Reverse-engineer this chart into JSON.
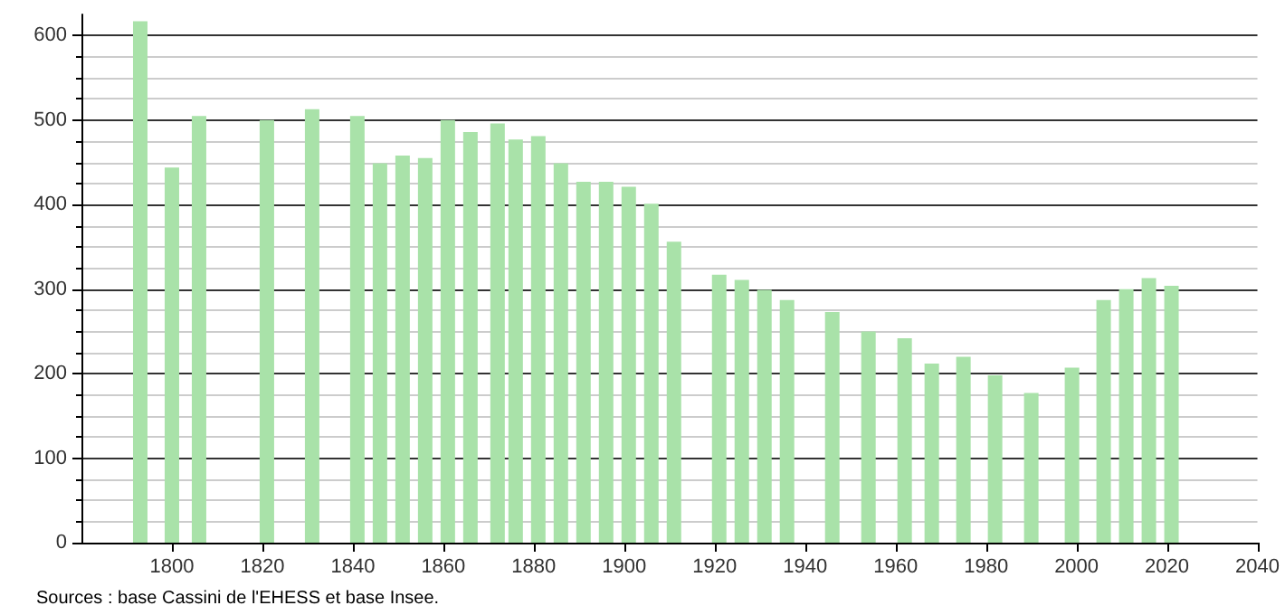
{
  "chart_data": {
    "type": "bar",
    "x": [
      1793,
      1800,
      1806,
      1821,
      1831,
      1841,
      1846,
      1851,
      1856,
      1861,
      1866,
      1872,
      1876,
      1881,
      1886,
      1891,
      1896,
      1901,
      1906,
      1911,
      1921,
      1926,
      1931,
      1936,
      1946,
      1954,
      1962,
      1968,
      1975,
      1982,
      1990,
      1999,
      2006,
      2011,
      2016,
      2021
    ],
    "values": [
      617,
      444,
      505,
      500,
      513,
      505,
      449,
      458,
      455,
      500,
      486,
      496,
      477,
      481,
      449,
      427,
      427,
      421,
      401,
      356,
      317,
      311,
      299,
      287,
      273,
      250,
      242,
      212,
      220,
      198,
      177,
      207,
      287,
      300,
      313,
      304
    ],
    "color": "#a9e2a9",
    "xlim": [
      1780,
      2040
    ],
    "xticks": [
      1800,
      1820,
      1840,
      1860,
      1880,
      1900,
      1920,
      1940,
      1960,
      1980,
      2000,
      2020,
      2040
    ],
    "ylim": [
      0,
      625
    ],
    "yticks": [
      0,
      100,
      200,
      300,
      400,
      500,
      600
    ],
    "grid": "y",
    "annotations": [
      "Sources : base Cassini de l'EHESS et base Insee."
    ]
  }
}
